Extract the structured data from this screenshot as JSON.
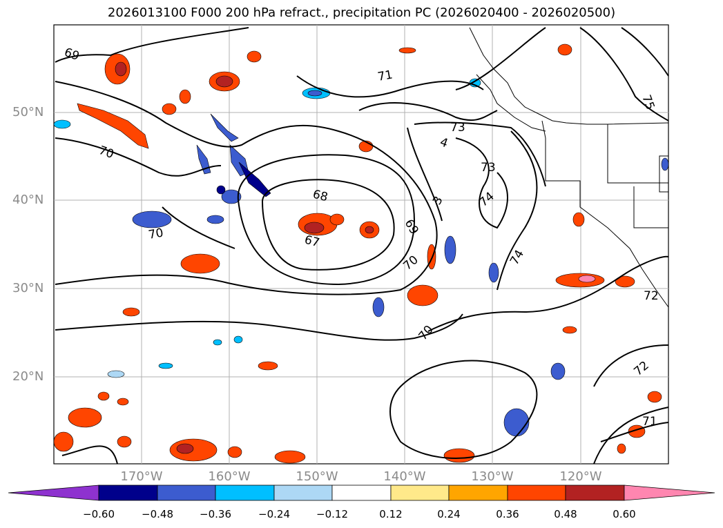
{
  "title": "2026013100 F000 200 hPa refract., precipitation PC (2026020400 - 2026020500)",
  "lat_labels": [
    "50°N",
    "40°N",
    "30°N",
    "20°N"
  ],
  "lon_labels": [
    "170°W",
    "160°W",
    "150°W",
    "140°W",
    "130°W",
    "120°W"
  ],
  "contour_labels": [
    "69",
    "71",
    "73",
    "4",
    "75",
    "70",
    "73",
    "68",
    "3",
    "74",
    "69",
    "70",
    "67",
    "70",
    "74",
    "70",
    "72",
    "72",
    "71"
  ],
  "colorbar": {
    "ticks": [
      "−0.60",
      "−0.48",
      "−0.36",
      "−0.24",
      "−0.12",
      "0.12",
      "0.24",
      "0.36",
      "0.48",
      "0.60"
    ],
    "colors": [
      "#8e32cf",
      "#00008b",
      "#3c5ccf",
      "#00bfff",
      "#add8f5",
      "#ffffff",
      "#ffe98a",
      "#ffa500",
      "#ff4500",
      "#b22222",
      "#ff86b0"
    ]
  }
}
